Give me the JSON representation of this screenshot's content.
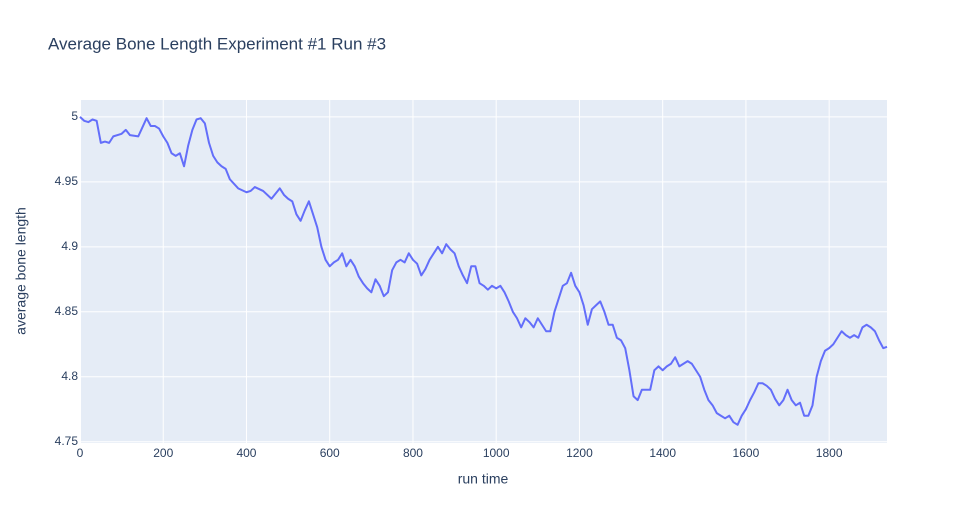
{
  "chart_data": {
    "type": "line",
    "title": "Average Bone Length Experiment #1 Run #3",
    "x_label": "run time",
    "y_label": "average bone length",
    "color": "#636efa",
    "grid": true,
    "xlim": [
      0,
      1939
    ],
    "ylim": [
      4.749,
      5.013
    ],
    "xticks": [
      0,
      200,
      400,
      600,
      800,
      1000,
      1200,
      1400,
      1600,
      1800
    ],
    "yticks": [
      4.75,
      4.8,
      4.85,
      4.9,
      4.95,
      5
    ],
    "x": [
      0,
      10,
      20,
      30,
      40,
      50,
      60,
      70,
      80,
      100,
      110,
      120,
      140,
      150,
      160,
      170,
      180,
      190,
      200,
      210,
      220,
      230,
      240,
      250,
      260,
      270,
      280,
      290,
      300,
      310,
      320,
      330,
      340,
      350,
      360,
      380,
      400,
      410,
      420,
      440,
      460,
      480,
      490,
      500,
      510,
      520,
      530,
      540,
      550,
      560,
      570,
      580,
      590,
      600,
      610,
      620,
      630,
      640,
      650,
      660,
      670,
      680,
      690,
      700,
      710,
      720,
      730,
      740,
      750,
      760,
      770,
      780,
      790,
      800,
      810,
      820,
      830,
      840,
      850,
      860,
      870,
      880,
      890,
      900,
      910,
      920,
      930,
      940,
      950,
      960,
      970,
      980,
      990,
      1000,
      1010,
      1020,
      1030,
      1040,
      1050,
      1060,
      1070,
      1080,
      1090,
      1100,
      1110,
      1120,
      1130,
      1140,
      1150,
      1160,
      1170,
      1180,
      1190,
      1200,
      1210,
      1220,
      1230,
      1240,
      1250,
      1260,
      1270,
      1280,
      1290,
      1300,
      1310,
      1320,
      1330,
      1340,
      1350,
      1360,
      1370,
      1380,
      1390,
      1400,
      1410,
      1420,
      1430,
      1440,
      1450,
      1460,
      1470,
      1480,
      1490,
      1500,
      1510,
      1520,
      1530,
      1540,
      1550,
      1560,
      1570,
      1580,
      1590,
      1600,
      1610,
      1620,
      1630,
      1640,
      1650,
      1660,
      1670,
      1680,
      1690,
      1700,
      1710,
      1720,
      1730,
      1740,
      1750,
      1760,
      1770,
      1780,
      1790,
      1800,
      1810,
      1820,
      1830,
      1840,
      1850,
      1860,
      1870,
      1880,
      1890,
      1900,
      1910,
      1920,
      1930,
      1939
    ],
    "values": [
      5.0,
      4.997,
      4.996,
      4.998,
      4.997,
      4.98,
      4.981,
      4.98,
      4.985,
      4.987,
      4.99,
      4.986,
      4.985,
      4.992,
      4.999,
      4.993,
      4.993,
      4.991,
      4.985,
      4.98,
      4.972,
      4.97,
      4.972,
      4.962,
      4.978,
      4.99,
      4.998,
      4.999,
      4.995,
      4.98,
      4.97,
      4.965,
      4.962,
      4.96,
      4.952,
      4.945,
      4.942,
      4.943,
      4.946,
      4.943,
      4.937,
      4.945,
      4.94,
      4.937,
      4.935,
      4.925,
      4.92,
      4.928,
      4.935,
      4.925,
      4.915,
      4.9,
      4.89,
      4.885,
      4.888,
      4.89,
      4.895,
      4.885,
      4.89,
      4.885,
      4.877,
      4.872,
      4.868,
      4.865,
      4.875,
      4.87,
      4.862,
      4.865,
      4.882,
      4.888,
      4.89,
      4.888,
      4.895,
      4.89,
      4.887,
      4.878,
      4.883,
      4.89,
      4.895,
      4.9,
      4.895,
      4.902,
      4.898,
      4.895,
      4.885,
      4.878,
      4.872,
      4.885,
      4.885,
      4.872,
      4.87,
      4.867,
      4.87,
      4.868,
      4.87,
      4.865,
      4.858,
      4.85,
      4.845,
      4.838,
      4.845,
      4.842,
      4.838,
      4.845,
      4.84,
      4.835,
      4.835,
      4.85,
      4.86,
      4.87,
      4.872,
      4.88,
      4.87,
      4.865,
      4.855,
      4.84,
      4.852,
      4.855,
      4.858,
      4.85,
      4.84,
      4.84,
      4.83,
      4.828,
      4.822,
      4.805,
      4.785,
      4.782,
      4.79,
      4.79,
      4.79,
      4.805,
      4.808,
      4.805,
      4.808,
      4.81,
      4.815,
      4.808,
      4.81,
      4.812,
      4.81,
      4.805,
      4.8,
      4.79,
      4.782,
      4.778,
      4.772,
      4.77,
      4.768,
      4.77,
      4.765,
      4.763,
      4.77,
      4.775,
      4.782,
      4.788,
      4.795,
      4.795,
      4.793,
      4.79,
      4.783,
      4.778,
      4.782,
      4.79,
      4.782,
      4.778,
      4.78,
      4.77,
      4.77,
      4.778,
      4.8,
      4.812,
      4.82,
      4.822,
      4.825,
      4.83,
      4.835,
      4.832,
      4.83,
      4.832,
      4.83,
      4.838,
      4.84,
      4.838,
      4.835,
      4.828,
      4.822,
      4.823
    ]
  }
}
